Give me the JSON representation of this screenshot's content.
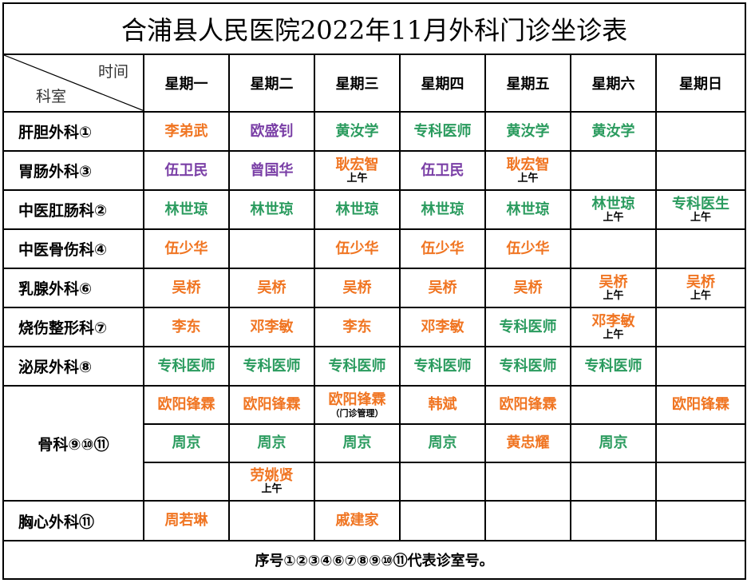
{
  "title": "合浦县人民医院2022年11月外科门诊坐诊表",
  "corner": {
    "time": "时间",
    "room": "科室"
  },
  "days": [
    "星期一",
    "星期二",
    "星期三",
    "星期四",
    "星期五",
    "星期六",
    "星期日"
  ],
  "colors": {
    "orange": "#f07522",
    "purple": "#7a3fa6",
    "green": "#2a9b5e"
  },
  "rows": [
    {
      "dept": "肝胆外科①",
      "height": 49,
      "cells": [
        {
          "name": "李弟武",
          "color": "orange"
        },
        {
          "name": "欧盛钊",
          "color": "purple"
        },
        {
          "name": "黄汝学",
          "color": "green"
        },
        {
          "name": "专科医师",
          "color": "green"
        },
        {
          "name": "黄汝学",
          "color": "green"
        },
        {
          "name": "黄汝学",
          "color": "green"
        },
        {}
      ]
    },
    {
      "dept": "胃肠外科③",
      "height": 49,
      "cells": [
        {
          "name": "伍卫民",
          "color": "purple"
        },
        {
          "name": "曾国华",
          "color": "purple"
        },
        {
          "name": "耿宏智",
          "color": "orange",
          "note": "上午"
        },
        {
          "name": "伍卫民",
          "color": "purple"
        },
        {
          "name": "耿宏智",
          "color": "orange",
          "note": "上午"
        },
        {},
        {}
      ]
    },
    {
      "dept": "中医肛肠科②",
      "height": 49,
      "cells": [
        {
          "name": "林世琼",
          "color": "green"
        },
        {
          "name": "林世琼",
          "color": "green"
        },
        {
          "name": "林世琼",
          "color": "green"
        },
        {
          "name": "林世琼",
          "color": "green"
        },
        {
          "name": "林世琼",
          "color": "green"
        },
        {
          "name": "林世琼",
          "color": "green",
          "note": "上午"
        },
        {
          "name": "专科医生",
          "color": "green",
          "note": "上午"
        }
      ]
    },
    {
      "dept": "中医骨伤科④",
      "height": 49,
      "cells": [
        {
          "name": "伍少华",
          "color": "orange"
        },
        {},
        {
          "name": "伍少华",
          "color": "orange"
        },
        {
          "name": "伍少华",
          "color": "orange"
        },
        {
          "name": "伍少华",
          "color": "orange"
        },
        {},
        {}
      ]
    },
    {
      "dept": "乳腺外科⑥",
      "height": 49,
      "cells": [
        {
          "name": "吴桥",
          "color": "orange"
        },
        {
          "name": "吴桥",
          "color": "orange"
        },
        {
          "name": "吴桥",
          "color": "orange"
        },
        {
          "name": "吴桥",
          "color": "orange"
        },
        {
          "name": "吴桥",
          "color": "orange"
        },
        {
          "name": "吴桥",
          "color": "orange",
          "note": "上午"
        },
        {
          "name": "吴桥",
          "color": "orange",
          "note": "上午"
        }
      ]
    },
    {
      "dept": "烧伤整形科⑦",
      "height": 49,
      "cells": [
        {
          "name": "李东",
          "color": "orange"
        },
        {
          "name": "邓李敏",
          "color": "orange"
        },
        {
          "name": "李东",
          "color": "orange"
        },
        {
          "name": "邓李敏",
          "color": "orange"
        },
        {
          "name": "专科医师",
          "color": "green"
        },
        {
          "name": "邓李敏",
          "color": "orange",
          "note": "上午"
        },
        {}
      ]
    },
    {
      "dept": "泌尿外科⑧",
      "height": 49,
      "cells": [
        {
          "name": "专科医师",
          "color": "green"
        },
        {
          "name": "专科医师",
          "color": "green"
        },
        {
          "name": "专科医师",
          "color": "green"
        },
        {
          "name": "专科医师",
          "color": "green"
        },
        {
          "name": "专科医师",
          "color": "green"
        },
        {
          "name": "专科医师",
          "color": "green"
        },
        {}
      ]
    }
  ],
  "bone": {
    "dept": "骨科⑨⑩⑪",
    "rows": [
      [
        {
          "name": "欧阳锋霖",
          "color": "orange"
        },
        {
          "name": "欧阳锋霖",
          "color": "orange"
        },
        {
          "name": "欧阳锋霖",
          "color": "orange",
          "small": "（门诊管理）"
        },
        {
          "name": "韩斌",
          "color": "orange"
        },
        {
          "name": "欧阳锋霖",
          "color": "orange"
        },
        {},
        {
          "name": "欧阳锋霖",
          "color": "orange"
        }
      ],
      [
        {
          "name": "周京",
          "color": "green"
        },
        {
          "name": "周京",
          "color": "green"
        },
        {
          "name": "周京",
          "color": "green"
        },
        {
          "name": "周京",
          "color": "green"
        },
        {
          "name": "黄忠耀",
          "color": "orange"
        },
        {
          "name": "周京",
          "color": "green"
        },
        {}
      ],
      [
        {},
        {
          "name": "劳姚贤",
          "color": "orange",
          "note": "上午"
        },
        {},
        {},
        {},
        {},
        {}
      ]
    ]
  },
  "chest": {
    "dept": "胸心外科⑪",
    "cells": [
      {
        "name": "周若琳",
        "color": "orange"
      },
      {},
      {
        "name": "戚建家",
        "color": "orange"
      },
      {},
      {},
      {},
      {}
    ]
  },
  "footer": "序号①②③④⑥⑦⑧⑨⑩⑪代表诊室号。"
}
